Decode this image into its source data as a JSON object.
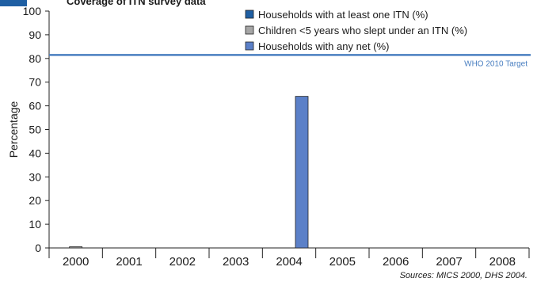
{
  "title": "Coverage of ITN survey data",
  "source_note": "Sources: MICS 2000, DHS 2004.",
  "chart_data": {
    "type": "bar",
    "categories": [
      "2000",
      "2001",
      "2002",
      "2003",
      "2004",
      "2005",
      "2006",
      "2007",
      "2008"
    ],
    "series": [
      {
        "name": "Households with at least one ITN (%)",
        "color": "#1f5fa3",
        "values": [
          null,
          null,
          null,
          null,
          null,
          null,
          null,
          null,
          null
        ]
      },
      {
        "name": "Children <5 years who slept under an ITN (%)",
        "color": "#a6a6a6",
        "values": [
          0.5,
          null,
          null,
          null,
          null,
          null,
          null,
          null,
          null
        ]
      },
      {
        "name": "Households with any net (%)",
        "color": "#5b80c8",
        "values": [
          null,
          null,
          null,
          null,
          64,
          null,
          null,
          null,
          null
        ]
      }
    ],
    "ylabel": "Percentage",
    "xlabel": "",
    "ylim": [
      0,
      100
    ],
    "yticks": [
      0,
      10,
      20,
      30,
      40,
      50,
      60,
      70,
      80,
      90,
      100
    ],
    "reference_line": {
      "value": 81.5,
      "label": "WHO 2010 Target",
      "color": "#4a7fc1"
    },
    "legend_position": "top-center",
    "grid": false
  }
}
